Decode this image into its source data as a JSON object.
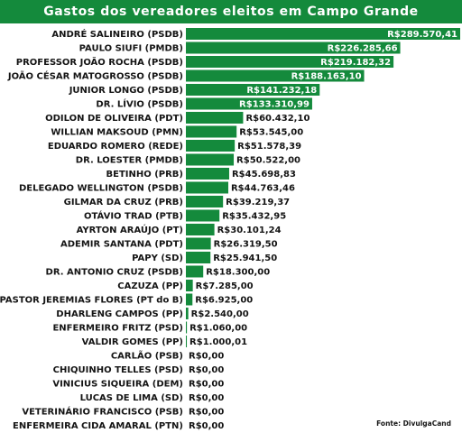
{
  "title": "Gastos dos vereadores eleitos em Campo Grande",
  "source": "Fonte: DivulgaCand",
  "colors": {
    "bar": "#148a3c",
    "title_bg": "#148a3c",
    "title_text": "#ffffff",
    "inside_label": "#ffffff",
    "outside_label": "#141414"
  },
  "chart_data": {
    "type": "bar",
    "orientation": "horizontal",
    "title": "Gastos dos vereadores eleitos em Campo Grande",
    "xlabel": "",
    "ylabel": "",
    "xlim": [
      0,
      289570.41
    ],
    "grid": false,
    "legend": "none",
    "categories": [
      "ANDRÉ SALINEIRO (PSDB)",
      "PAULO SIUFI (PMDB)",
      "PROFESSOR JOÃO ROCHA (PSDB)",
      "JOÃO CÉSAR MATOGROSSO (PSDB)",
      "JUNIOR LONGO (PSDB)",
      "DR. LÍVIO (PSDB)",
      "ODILON DE OLIVEIRA (PDT)",
      "WILLIAN MAKSOUD (PMN)",
      "EDUARDO ROMERO (REDE)",
      "DR. LOESTER (PMDB)",
      "BETINHO (PRB)",
      "DELEGADO WELLINGTON (PSDB)",
      "GILMAR DA CRUZ (PRB)",
      "OTÁVIO TRAD (PTB)",
      "AYRTON ARAÚJO (PT)",
      "ADEMIR SANTANA (PDT)",
      "PAPY (SD)",
      "DR. ANTONIO CRUZ (PSDB)",
      "CAZUZA (PP)",
      "PASTOR JEREMIAS FLORES (PT do B)",
      "DHARLENG CAMPOS (PP)",
      "ENFERMEIRO FRITZ (PSD)",
      "VALDIR GOMES (PP)",
      "CARLÃO (PSB)",
      "CHIQUINHO TELLES (PSD)",
      "VINICIUS SIQUEIRA (DEM)",
      "LUCAS DE LIMA (SD)",
      "VETERINÁRIO FRANCISCO (PSB)",
      "ENFERMEIRA CIDA AMARAL (PTN)"
    ],
    "values": [
      289570.41,
      226285.66,
      219182.32,
      188163.1,
      141232.18,
      133310.99,
      60432.1,
      53545.0,
      51578.39,
      50522.0,
      45698.83,
      44763.46,
      39219.37,
      35432.95,
      30101.24,
      26319.5,
      25941.5,
      18300.0,
      7285.0,
      6925.0,
      2540.0,
      1060.0,
      1000.01,
      0,
      0,
      0,
      0,
      0,
      0
    ],
    "value_labels": [
      "R$289.570,41",
      "R$226.285,66",
      "R$219.182,32",
      "R$188.163,10",
      "R$141.232,18",
      "R$133.310,99",
      "R$60.432,10",
      "R$53.545,00",
      "R$51.578,39",
      "R$50.522,00",
      "R$45.698,83",
      "R$44.763,46",
      "R$39.219,37",
      "R$35.432,95",
      "R$30.101,24",
      "R$26.319,50",
      "R$25.941,50",
      "R$18.300,00",
      "R$7.285,00",
      "R$6.925,00",
      "R$2.540,00",
      "R$1.060,00",
      "R$1.000,01",
      "R$0,00",
      "R$0,00",
      "R$0,00",
      "R$0,00",
      "R$0,00",
      "R$0,00"
    ],
    "labels_inside_bar_count": 6
  }
}
